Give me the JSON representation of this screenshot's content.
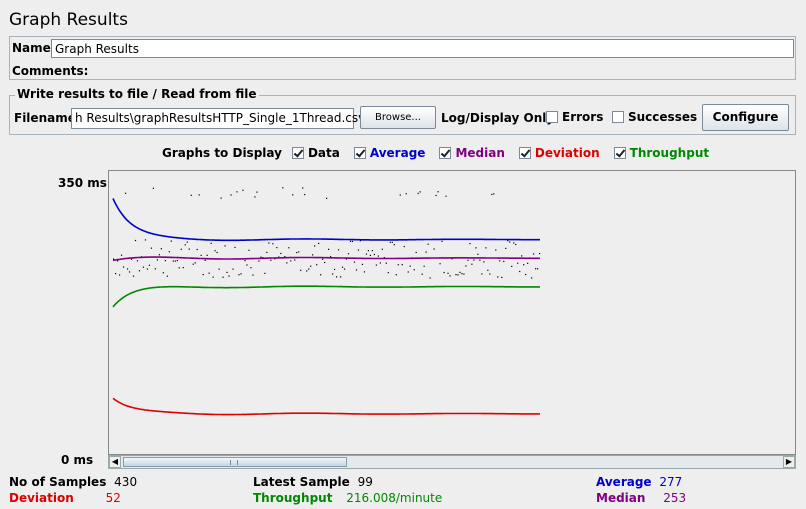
{
  "title": "Graph Results",
  "name_label": "Name:",
  "name_value": "Graph Results",
  "comments_label": "Comments:",
  "file_panel": {
    "legend": "Write results to file / Read from file",
    "filename_label": "Filename",
    "filename_value": "h Results\\graphResultsHTTP_Single_1Thread.csv",
    "browse_label": "Browse...",
    "logdisplay_label": "Log/Display Only:",
    "errors_label": "Errors",
    "successes_label": "Successes",
    "configure_label": "Configure"
  },
  "graphs": {
    "label": "Graphs to Display",
    "items": [
      {
        "label": "Data",
        "color": "#000000",
        "checked": true
      },
      {
        "label": "Average",
        "color": "#0000cc",
        "checked": true
      },
      {
        "label": "Median",
        "color": "#800080",
        "checked": true
      },
      {
        "label": "Deviation",
        "color": "#dd0000",
        "checked": true
      },
      {
        "label": "Throughput",
        "color": "#008800",
        "checked": true
      }
    ]
  },
  "axis": {
    "top_label": "350 ms",
    "bottom_label": "0 ms"
  },
  "chart_data": {
    "type": "line",
    "ylim": [
      0,
      350
    ],
    "ylabel": "ms",
    "samples": 430,
    "series": [
      {
        "name": "Average",
        "color": "#0000cc",
        "start": 330,
        "settle": 277
      },
      {
        "name": "Median",
        "color": "#800080",
        "start": 250,
        "settle": 253
      },
      {
        "name": "Throughput",
        "color": "#008800",
        "start": 190,
        "settle": 216
      },
      {
        "name": "Deviation",
        "color": "#dd0000",
        "start": 72,
        "settle": 52
      }
    ]
  },
  "stats": {
    "samples_label": "No of Samples",
    "samples_value": "430",
    "latest_label": "Latest Sample",
    "latest_value": "99",
    "average_label": "Average",
    "average_value": "277",
    "deviation_label": "Deviation",
    "deviation_value": "52",
    "throughput_label": "Throughput",
    "throughput_value": "216.008/minute",
    "median_label": "Median",
    "median_value": "253"
  }
}
